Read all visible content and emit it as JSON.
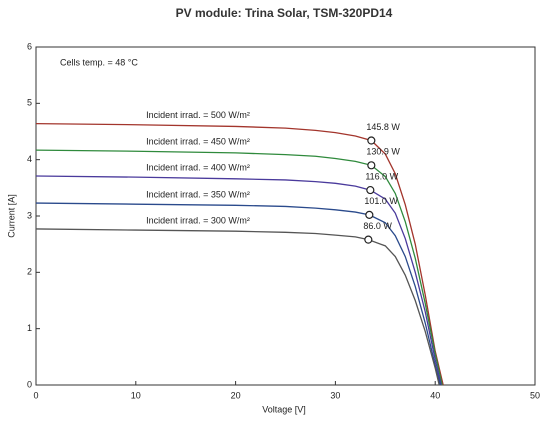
{
  "chart_data": {
    "type": "line",
    "title": "PV module:  Trina Solar,  TSM-320PD14",
    "xlabel": "Voltage [V]",
    "ylabel": "Current [A]",
    "annotation": "Cells temp. = 48 °C",
    "xlim": [
      0,
      50
    ],
    "xticks": [
      0,
      10,
      20,
      30,
      40,
      50
    ],
    "ylim": [
      0,
      6
    ],
    "yticks": [
      0,
      1,
      2,
      3,
      4,
      5,
      6
    ],
    "grid": false,
    "series": [
      {
        "name": "Incident irrad. = 500 W/m²",
        "color": "#a3352c",
        "x": [
          0,
          10,
          20,
          25,
          28,
          30,
          32,
          33.6,
          35,
          36,
          37,
          38,
          39,
          40,
          40.8
        ],
        "values": [
          4.64,
          4.62,
          4.59,
          4.56,
          4.52,
          4.48,
          4.42,
          4.34,
          4.1,
          3.75,
          3.2,
          2.5,
          1.6,
          0.6,
          0
        ],
        "mpp": {
          "x": 33.6,
          "value": 4.34,
          "label": "145.8 W"
        }
      },
      {
        "name": "Incident irrad. = 450 W/m²",
        "color": "#2f8a3c",
        "x": [
          0,
          10,
          20,
          25,
          28,
          30,
          32,
          33.6,
          35,
          36,
          37,
          38,
          39,
          40,
          40.7
        ],
        "values": [
          4.17,
          4.15,
          4.12,
          4.09,
          4.06,
          4.02,
          3.97,
          3.9,
          3.7,
          3.4,
          2.9,
          2.25,
          1.45,
          0.55,
          0
        ],
        "mpp": {
          "x": 33.6,
          "value": 3.9,
          "label": "130.9 W"
        }
      },
      {
        "name": "Incident irrad. = 400 W/m²",
        "color": "#4a3a9c",
        "x": [
          0,
          10,
          20,
          25,
          28,
          30,
          32,
          33.5,
          35,
          36,
          37,
          38,
          39,
          40,
          40.6
        ],
        "values": [
          3.71,
          3.69,
          3.66,
          3.64,
          3.61,
          3.58,
          3.53,
          3.46,
          3.3,
          3.05,
          2.6,
          2.0,
          1.3,
          0.45,
          0
        ],
        "mpp": {
          "x": 33.5,
          "value": 3.46,
          "label": "116.0 W"
        }
      },
      {
        "name": "Incident irrad. = 350 W/m²",
        "color": "#2a4a8c",
        "x": [
          0,
          10,
          20,
          25,
          28,
          30,
          32,
          33.4,
          35,
          36,
          37,
          38,
          39,
          40,
          40.5
        ],
        "values": [
          3.23,
          3.21,
          3.19,
          3.17,
          3.14,
          3.11,
          3.07,
          3.02,
          2.88,
          2.65,
          2.28,
          1.75,
          1.1,
          0.35,
          0
        ],
        "mpp": {
          "x": 33.4,
          "value": 3.02,
          "label": "101.0 W"
        }
      },
      {
        "name": "Incident irrad. = 300 W/m²",
        "color": "#555555",
        "x": [
          0,
          10,
          20,
          25,
          28,
          30,
          32,
          33.3,
          35,
          36,
          37,
          38,
          39,
          40,
          40.4
        ],
        "values": [
          2.77,
          2.75,
          2.73,
          2.71,
          2.69,
          2.66,
          2.63,
          2.58,
          2.47,
          2.28,
          1.95,
          1.5,
          0.95,
          0.3,
          0
        ],
        "mpp": {
          "x": 33.3,
          "value": 2.58,
          "label": "86.0 W"
        }
      }
    ]
  }
}
